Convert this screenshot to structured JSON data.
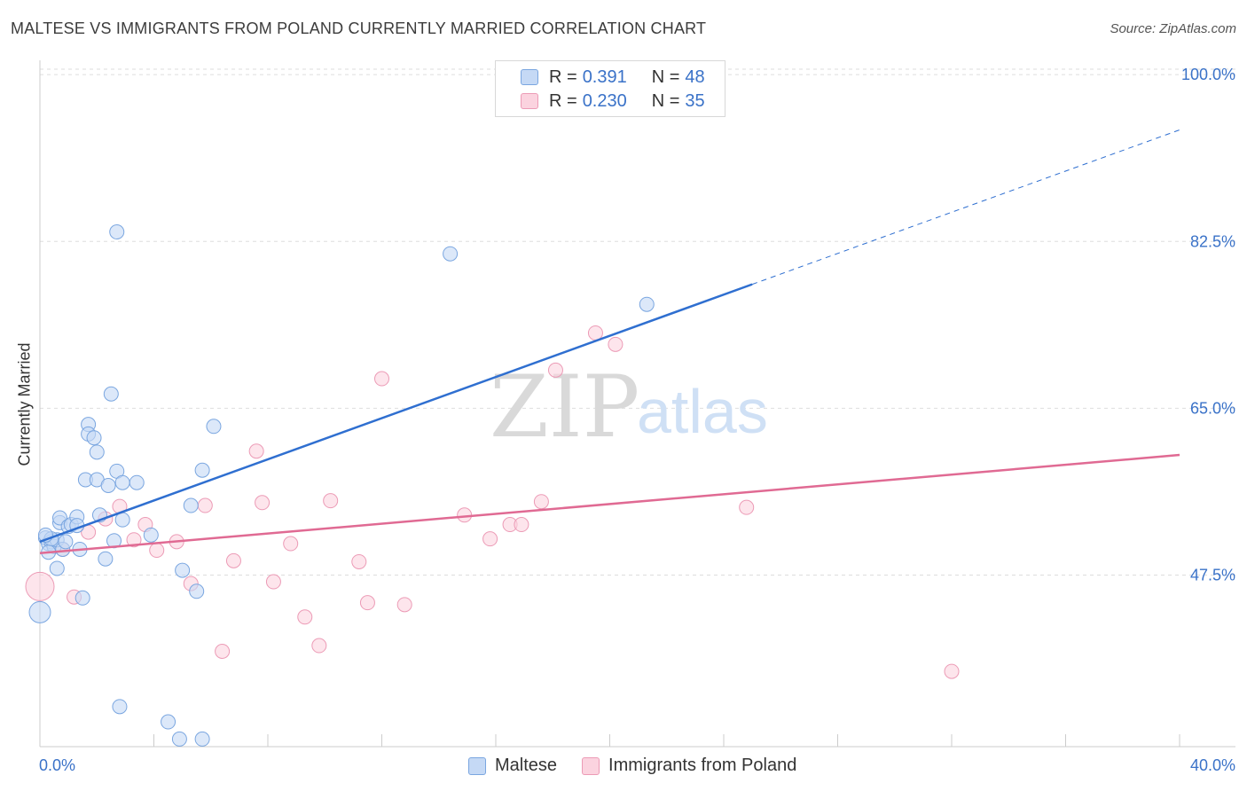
{
  "header": {
    "title": "MALTESE VS IMMIGRANTS FROM POLAND CURRENTLY MARRIED CORRELATION CHART",
    "source": "Source: ZipAtlas.com"
  },
  "watermark": {
    "zip": "ZIP",
    "atlas": "atlas"
  },
  "legend": {
    "rows": [
      {
        "r_label": "R =",
        "r_value": "0.391",
        "n_label": "N =",
        "n_value": "48"
      },
      {
        "r_label": "R =",
        "r_value": "0.230",
        "n_label": "N =",
        "n_value": "35"
      }
    ]
  },
  "bottom_legend": {
    "items": [
      "Maltese",
      "Immigrants from Poland"
    ]
  },
  "colors": {
    "maltese_fill": "#c5d9f5",
    "maltese_stroke": "#7aa6e0",
    "maltese_line": "#2f6fd0",
    "poland_fill": "#fbd3df",
    "poland_stroke": "#ec9bb6",
    "poland_line": "#e06a93",
    "grid": "#dddddd",
    "tick_text": "#3a72c8"
  },
  "chart_data": {
    "type": "scatter",
    "title": "MALTESE VS IMMIGRANTS FROM POLAND CURRENTLY MARRIED CORRELATION CHART",
    "xlabel": "",
    "ylabel": "Currently Married",
    "xlim": [
      0,
      40
    ],
    "ylim": [
      29.5,
      101.5
    ],
    "x_tick_labels": [
      "0.0%",
      "40.0%"
    ],
    "y_ticks": [
      47.5,
      65.0,
      82.5,
      100.0
    ],
    "y_tick_labels": [
      "47.5%",
      "65.0%",
      "82.5%",
      "100.0%"
    ],
    "x_minor_ticks": [
      4,
      8,
      12,
      16,
      20,
      24,
      28,
      32,
      36,
      40
    ],
    "grid": true,
    "series": [
      {
        "name": "Maltese",
        "r": 0.391,
        "n": 48,
        "trend": {
          "x0": 0,
          "y0": 51.0,
          "x1": 25.0,
          "y1": 78.0,
          "dash_to_x": 40.0,
          "dash_to_y": 94.2
        },
        "points": [
          [
            0.2,
            51.4
          ],
          [
            0.3,
            50.8
          ],
          [
            0.4,
            51.0
          ],
          [
            0.5,
            50.5
          ],
          [
            0.6,
            51.2
          ],
          [
            0.7,
            53.0
          ],
          [
            0.7,
            53.5
          ],
          [
            0.8,
            50.2
          ],
          [
            0.9,
            51.0
          ],
          [
            1.0,
            52.6
          ],
          [
            1.1,
            52.8
          ],
          [
            1.3,
            53.6
          ],
          [
            1.3,
            52.7
          ],
          [
            1.4,
            50.2
          ],
          [
            1.5,
            45.1
          ],
          [
            1.6,
            57.5
          ],
          [
            1.7,
            63.3
          ],
          [
            1.7,
            62.3
          ],
          [
            1.9,
            61.9
          ],
          [
            2.0,
            60.4
          ],
          [
            2.0,
            57.5
          ],
          [
            2.1,
            53.8
          ],
          [
            2.3,
            49.2
          ],
          [
            2.4,
            56.9
          ],
          [
            2.5,
            66.5
          ],
          [
            2.6,
            51.1
          ],
          [
            2.7,
            58.4
          ],
          [
            2.8,
            33.7
          ],
          [
            2.9,
            57.2
          ],
          [
            2.9,
            53.3
          ],
          [
            3.4,
            57.2
          ],
          [
            3.9,
            51.7
          ],
          [
            4.5,
            32.1
          ],
          [
            4.9,
            30.3
          ],
          [
            5.0,
            48.0
          ],
          [
            5.3,
            54.8
          ],
          [
            5.5,
            45.8
          ],
          [
            5.7,
            58.5
          ],
          [
            5.7,
            30.3
          ],
          [
            6.1,
            63.1
          ],
          [
            0.4,
            51.3
          ],
          [
            0.3,
            49.9
          ],
          [
            0.2,
            51.7
          ],
          [
            0.6,
            48.2
          ],
          [
            0.0,
            43.6
          ],
          [
            2.7,
            83.5
          ],
          [
            14.4,
            81.2
          ],
          [
            21.3,
            75.9
          ]
        ]
      },
      {
        "name": "Immigrants from Poland",
        "r": 0.23,
        "n": 35,
        "trend": {
          "x0": 0,
          "y0": 49.8,
          "x1": 40.0,
          "y1": 60.1
        },
        "points": [
          [
            0.0,
            46.3
          ],
          [
            0.8,
            50.2
          ],
          [
            1.2,
            45.2
          ],
          [
            1.7,
            52.0
          ],
          [
            2.3,
            53.4
          ],
          [
            2.8,
            54.7
          ],
          [
            3.3,
            51.2
          ],
          [
            3.7,
            52.8
          ],
          [
            4.1,
            50.1
          ],
          [
            4.8,
            51.0
          ],
          [
            5.3,
            46.6
          ],
          [
            5.8,
            54.8
          ],
          [
            6.4,
            39.5
          ],
          [
            6.8,
            49.0
          ],
          [
            7.6,
            60.5
          ],
          [
            7.8,
            55.1
          ],
          [
            8.2,
            46.8
          ],
          [
            8.8,
            50.8
          ],
          [
            9.3,
            43.1
          ],
          [
            9.8,
            40.1
          ],
          [
            10.2,
            55.3
          ],
          [
            11.2,
            48.9
          ],
          [
            11.5,
            44.6
          ],
          [
            12.0,
            68.1
          ],
          [
            12.8,
            44.4
          ],
          [
            14.9,
            53.8
          ],
          [
            15.8,
            51.3
          ],
          [
            16.5,
            52.8
          ],
          [
            16.9,
            52.8
          ],
          [
            17.6,
            55.2
          ],
          [
            18.1,
            69.0
          ],
          [
            19.5,
            72.9
          ],
          [
            20.2,
            71.7
          ],
          [
            24.8,
            54.6
          ],
          [
            32.0,
            37.4
          ]
        ]
      }
    ]
  }
}
